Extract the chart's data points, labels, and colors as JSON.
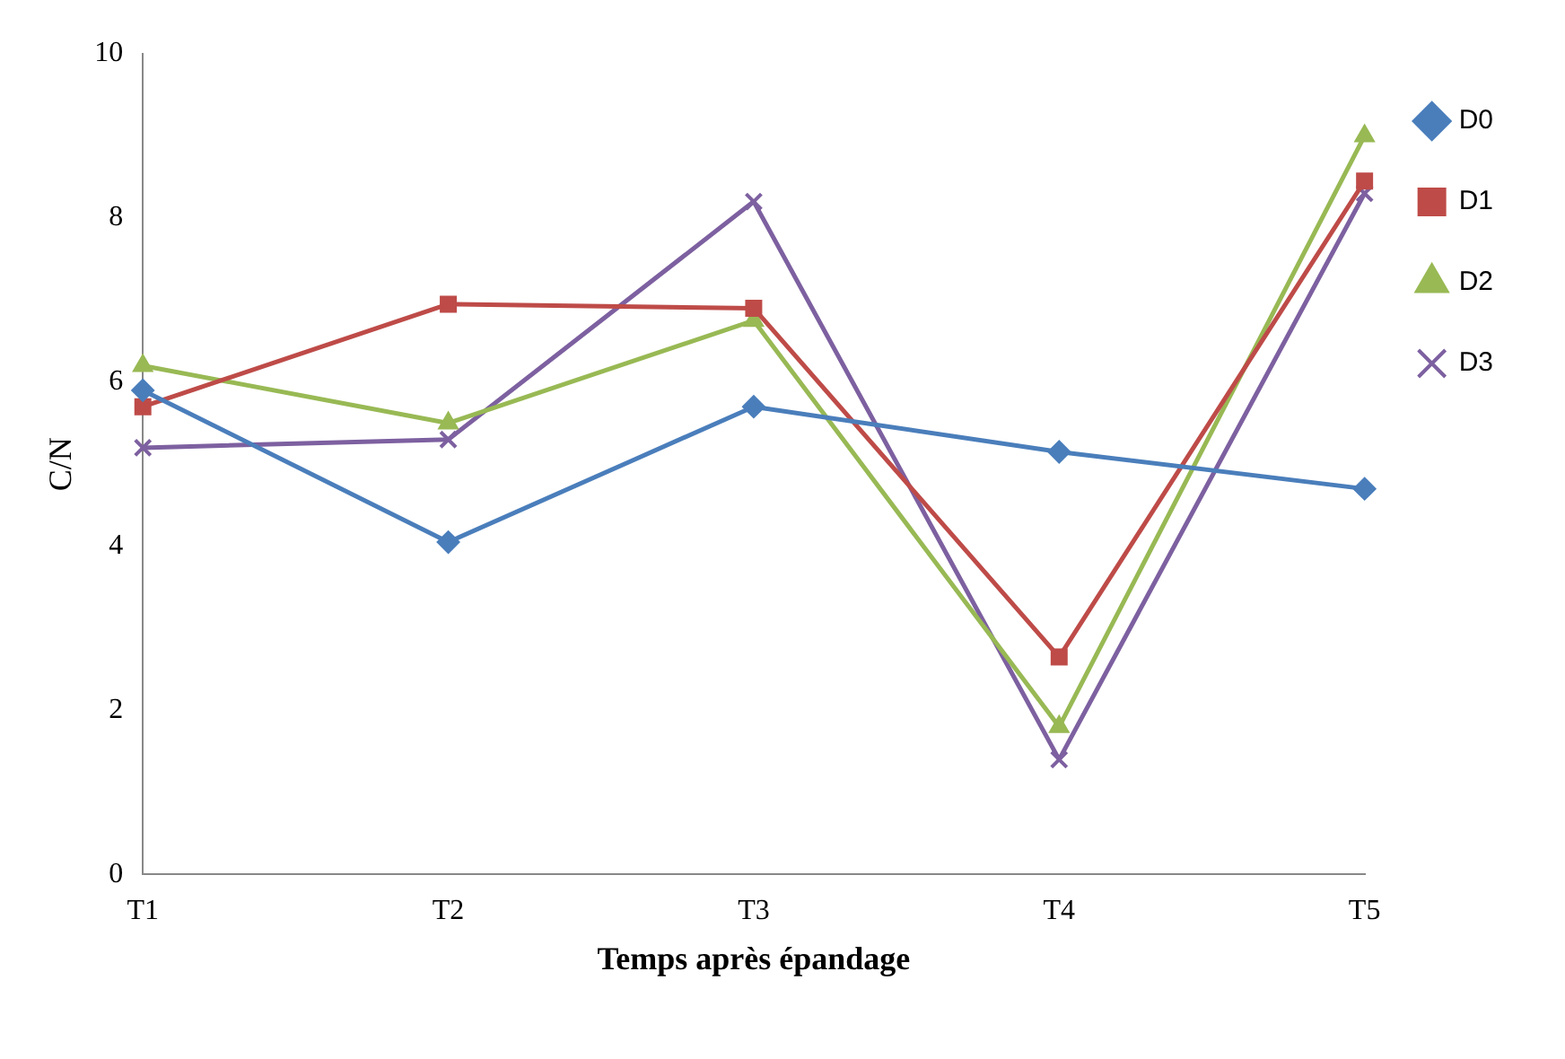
{
  "chart_data": {
    "type": "line",
    "xlabel": "Temps après épandage",
    "ylabel": "C/N",
    "categories": [
      "T1",
      "T2",
      "T3",
      "T4",
      "T5"
    ],
    "series": [
      {
        "name": "D0",
        "color": "#4a7ebb",
        "marker": "diamond",
        "values": [
          5.9,
          4.05,
          5.7,
          5.15,
          4.7
        ]
      },
      {
        "name": "D1",
        "color": "#be4b48",
        "marker": "square",
        "values": [
          5.7,
          6.95,
          6.9,
          2.65,
          8.45
        ]
      },
      {
        "name": "D2",
        "color": "#98b954",
        "marker": "triangle",
        "values": [
          6.2,
          5.5,
          6.75,
          1.8,
          9.0
        ]
      },
      {
        "name": "D3",
        "color": "#7d60a0",
        "marker": "cross",
        "values": [
          5.2,
          5.3,
          8.2,
          1.4,
          8.3
        ]
      }
    ],
    "ylim": [
      0,
      10
    ],
    "yticks": [
      0,
      2,
      4,
      6,
      8,
      10
    ],
    "grid": false,
    "legend": "right"
  }
}
